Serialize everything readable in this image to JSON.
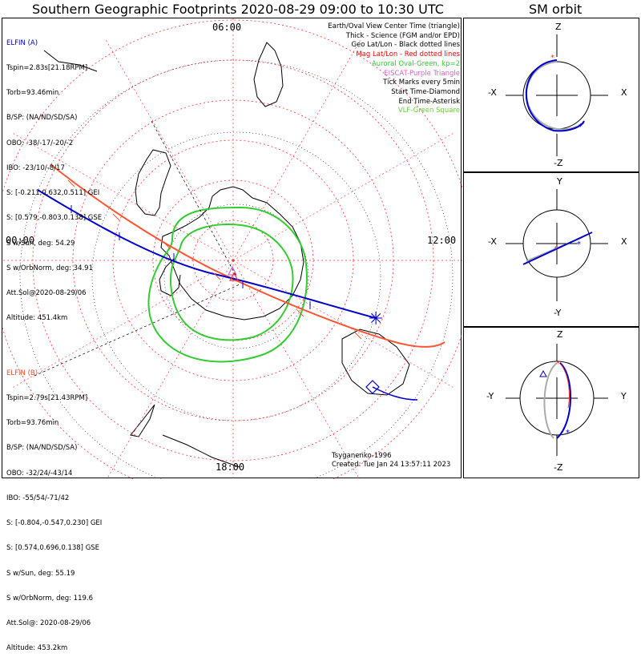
{
  "title": "Southern Geographic Footprints 2020-08-29 09:00 to 10:30 UTC",
  "orbit_title": "SM orbit",
  "clock_labels": {
    "top": "06:00",
    "left": "00:00",
    "right": "12:00",
    "bottom": "18:00"
  },
  "elfin_a": {
    "title": "ELFIN (A)",
    "lines": [
      "Tspin=2.83s[21.18RPM]",
      "Torb=93.46min",
      "B/SP: (NA/ND/SD/SA)",
      "OBO: -38/-17/-20/-2",
      "IBO: -23/10/-8/17",
      "S: [-0.211,0.632,0.511] GEI",
      "S: [0.579,-0.803,0.138] GSE",
      "S w/Sun, deg: 54.29",
      "S w/OrbNorm, deg: 34.91",
      "Att.Sol@2020-08-29/06",
      "Altitude: 451.4km"
    ]
  },
  "elfin_b": {
    "title": "ELFIN (B)",
    "lines": [
      "Tspin=2.79s[21.43RPM]",
      "Torb=93.76min",
      "B/SP: (NA/ND/SD/SA)",
      "OBO: -32/24/-43/14",
      "IBO: -55/54/-71/42",
      "S: [-0.804,-0.547,0.230] GEI",
      "S: [0.574,0.696,0.138] GSE",
      "S w/Sun, deg: 55.19",
      "S w/OrbNorm, deg: 119.6",
      "Att.Sol@: 2020-08-29/06",
      "Altitude: 453.2km"
    ]
  },
  "legend": [
    {
      "text": "Earth/Oval View Center Time (triangle)",
      "color": "#000000"
    },
    {
      "text": "Thick - Science (FGM and/or EPD)",
      "color": "#000000"
    },
    {
      "text": "Geo Lat/Lon - Black dotted lines",
      "color": "#000000"
    },
    {
      "text": "Mag Lat/Lon - Red dotted lines",
      "color": "#ff0000"
    },
    {
      "text": "Auroral Oval-Green, kp=2",
      "color": "#33cc33"
    },
    {
      "text": "EISCAT-Purple Triangle",
      "color": "#cc66cc"
    },
    {
      "text": "Tick Marks every 5min",
      "color": "#000000"
    },
    {
      "text": "Start Time-Diamond",
      "color": "#000000"
    },
    {
      "text": "End Time-Asterisk",
      "color": "#000000"
    },
    {
      "text": "VLF-Green Square",
      "color": "#66cc33"
    }
  ],
  "credits": [
    "Tsyganenko-1996",
    "Created: Tue Jan 24 13:57:11 2023"
  ],
  "orbit_panels": {
    "xz": {
      "top": "Z",
      "bottom": "-Z",
      "left": "-X",
      "right": "X"
    },
    "xy": {
      "top": "Y",
      "bottom": "-Y",
      "left": "-X",
      "right": "X"
    },
    "yz": {
      "top": "Z",
      "bottom": "-Z",
      "left": "-Y",
      "right": "Y"
    }
  },
  "colors": {
    "elfin_a": "#0000cc",
    "elfin_b": "#ff5533",
    "mag_grid": "#ff3333",
    "oval": "#33cc33",
    "eiscat": "#cc66cc"
  }
}
